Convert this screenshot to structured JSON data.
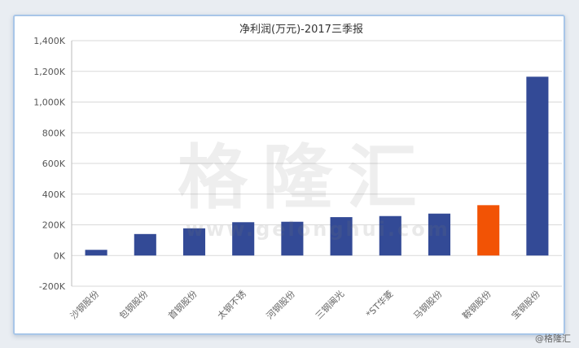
{
  "chart_data": {
    "type": "bar",
    "title": "净利润(万元)-2017三季报",
    "categories": [
      "沙钢股份",
      "包钢股份",
      "首钢股份",
      "太钢不锈",
      "河钢股份",
      "三钢闽光",
      "*ST华菱",
      "马钢股份",
      "鞍钢股份",
      "宝钢股份"
    ],
    "values": [
      37000,
      140000,
      177000,
      217000,
      220000,
      250000,
      257000,
      273000,
      328000,
      1165000
    ],
    "bar_colors": [
      "#334a96",
      "#334a96",
      "#334a96",
      "#334a96",
      "#334a96",
      "#334a96",
      "#334a96",
      "#334a96",
      "#f25305",
      "#334a96"
    ],
    "ylim": [
      -200000,
      1400000
    ],
    "y_ticks": [
      -200000,
      0,
      200000,
      400000,
      600000,
      800000,
      1000000,
      1200000,
      1400000
    ],
    "y_tick_labels": [
      "-200K",
      "0K",
      "200K",
      "400K",
      "600K",
      "800K",
      "1,000K",
      "1,200K",
      "1,400K"
    ],
    "grid": true,
    "legend": "none"
  },
  "watermark": {
    "chinese": "格隆汇",
    "url": "www.gelonghui.com"
  },
  "source_label": "@格隆汇"
}
